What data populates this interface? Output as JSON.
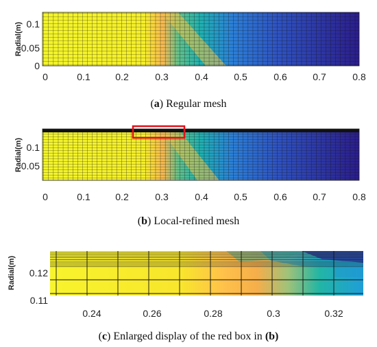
{
  "panels": [
    {
      "id": "a",
      "ylabel": "Radial(m)",
      "xticks": [
        "0",
        "0.1",
        "0.2",
        "0.3",
        "0.4",
        "0.5",
        "0.6",
        "0.7",
        "0.8"
      ],
      "yticks": [
        "0",
        "0.05",
        "0.1"
      ],
      "caption": {
        "letter": "a",
        "text": " Regular mesh"
      }
    },
    {
      "id": "b",
      "ylabel": "Radial(m)",
      "xticks": [
        "0",
        "0.1",
        "0.2",
        "0.3",
        "0.4",
        "0.5",
        "0.6",
        "0.7",
        "0.8"
      ],
      "yticks": [
        "0.05",
        "0.1"
      ],
      "caption": {
        "letter": "b",
        "text": " Local-refined mesh"
      }
    },
    {
      "id": "c",
      "ylabel": "Radial(m)",
      "xticks": [
        "0.24",
        "0.26",
        "0.28",
        "0.3",
        "0.32"
      ],
      "yticks": [
        "0.11",
        "0.12"
      ],
      "caption": {
        "letter": "c",
        "text": " Enlarged display of the red box in ",
        "ref": "(b)"
      }
    }
  ],
  "colors": {
    "yellow": "#f5f226",
    "orange": "#ffb84a",
    "teal": "#1fb6a8",
    "blue": "#2a6fd6",
    "navy": "#2a1f8f",
    "highlight_box": "#e0101a",
    "mesh_line": "#111111"
  }
}
